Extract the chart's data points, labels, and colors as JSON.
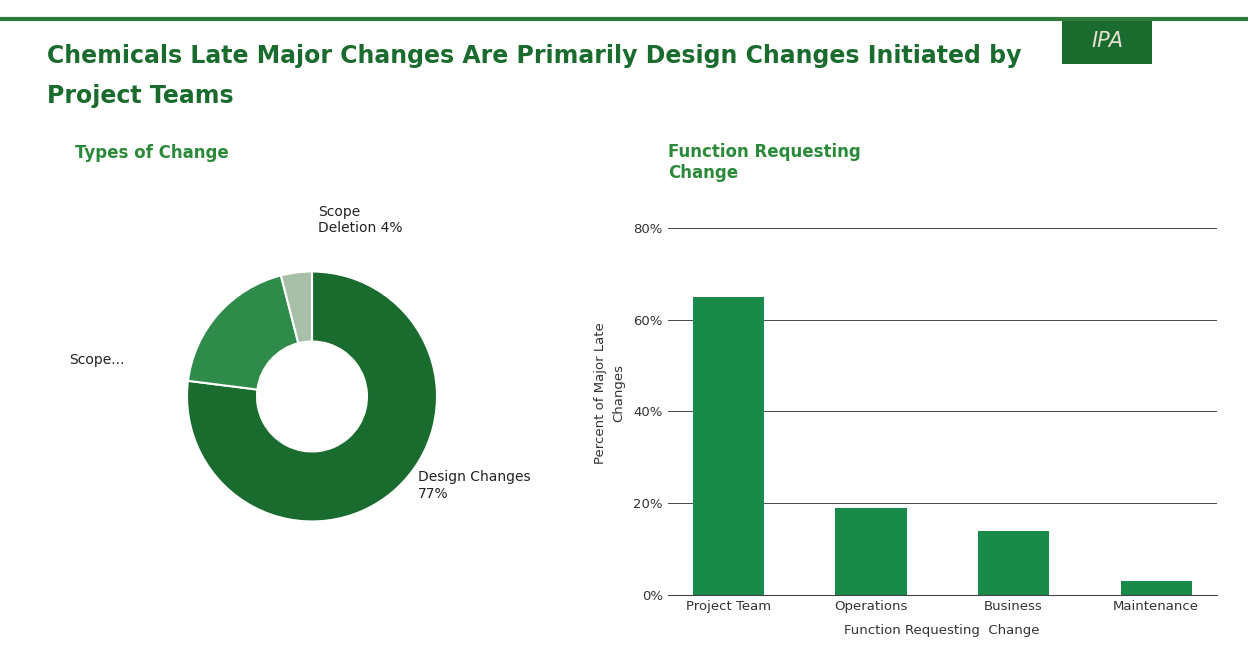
{
  "title_line1": "Chemicals Late Major Changes Are Primarily Design Changes Initiated by",
  "title_line2": "Project Teams",
  "title_color": "#1a6b2e",
  "title_fontsize": 17,
  "background_color": "#ffffff",
  "top_line_color": "#2d7a3a",
  "pie_title": "Types of Change",
  "pie_values": [
    77,
    19,
    4
  ],
  "pie_colors": [
    "#1a6b2e",
    "#2e8b4a",
    "#a8bfa8"
  ],
  "bar_title": "Function Requesting\nChange",
  "bar_categories": [
    "Project Team",
    "Operations",
    "Business",
    "Maintenance"
  ],
  "bar_values": [
    65,
    19,
    14,
    3
  ],
  "bar_color": "#1a8a4a",
  "bar_ylabel": "Percent of Major Late\nChanges",
  "bar_xlabel": "Function Requesting  Change",
  "bar_yticks": [
    0,
    20,
    40,
    60,
    80
  ],
  "bar_ytick_labels": [
    "0%",
    "20%",
    "40%",
    "60%",
    "80%"
  ],
  "ipa_bg_color": "#1a6b2e",
  "ipa_text_color": "#e8e0d0",
  "chart_title_color": "#2a8a3a",
  "label_color": "#222222"
}
